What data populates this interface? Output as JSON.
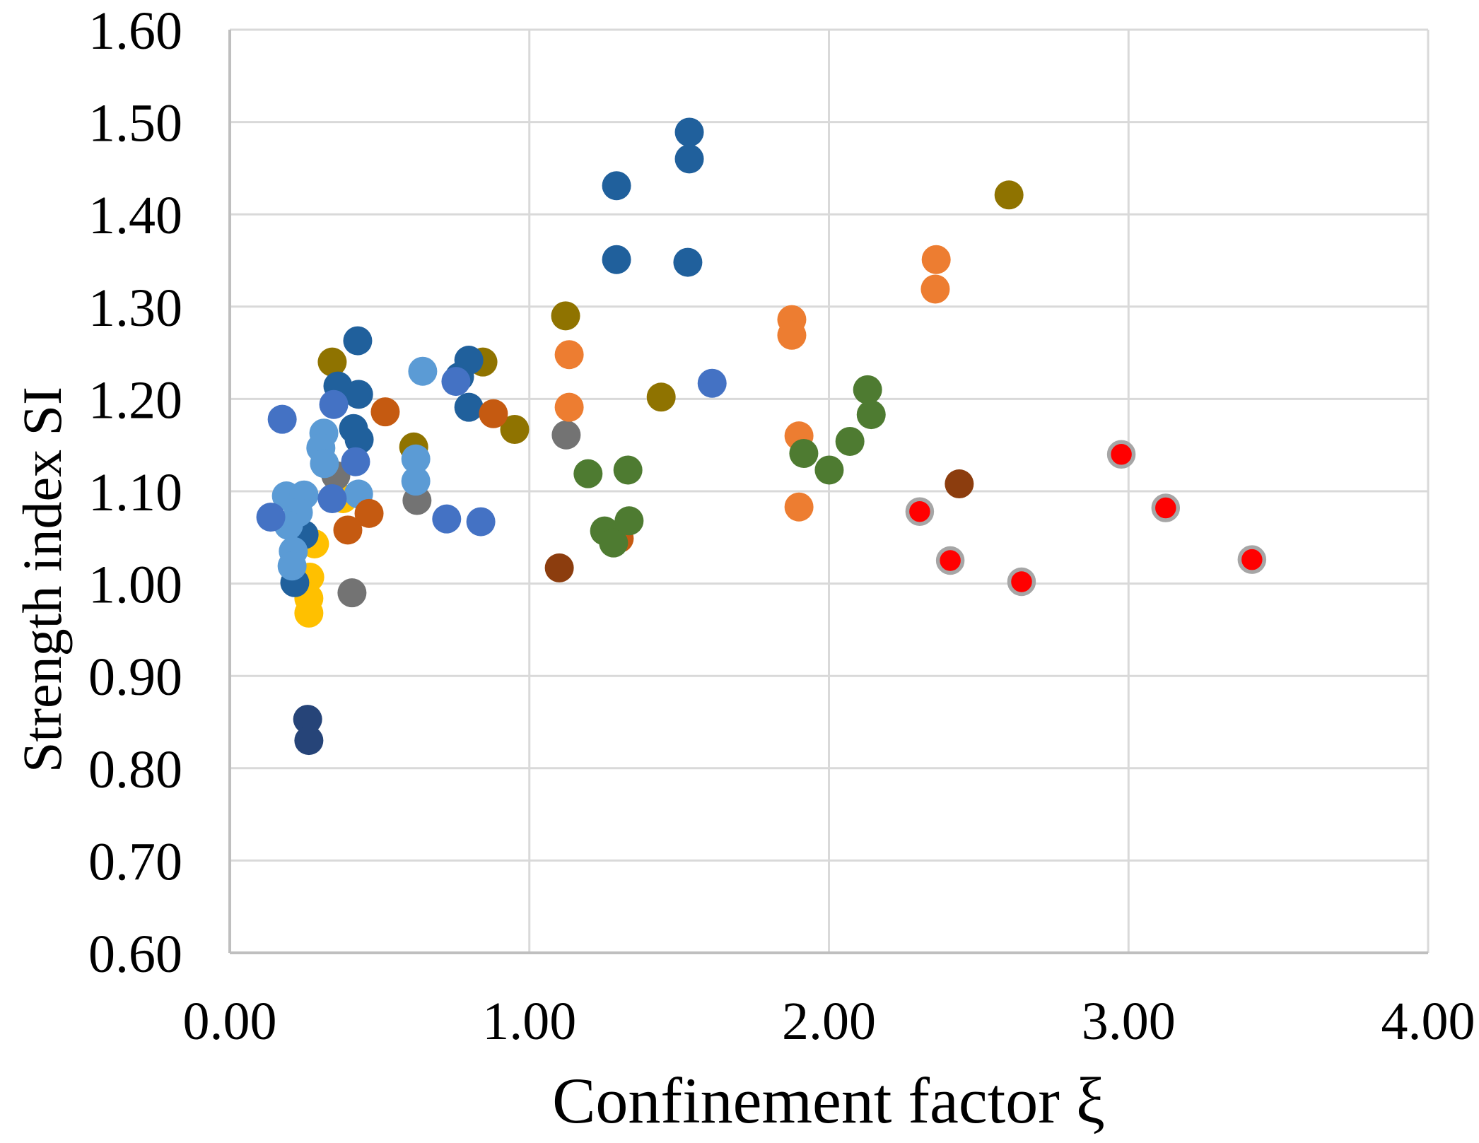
{
  "chart_data": {
    "type": "scatter",
    "title": "",
    "xlabel": "Confinement factor ξ",
    "ylabel": "Strength index SI",
    "xlim": [
      0.0,
      4.0
    ],
    "ylim": [
      0.6,
      1.6
    ],
    "grid": true,
    "legend_position": "none",
    "x_ticks": [
      {
        "value": 0.0,
        "label": "0.00"
      },
      {
        "value": 1.0,
        "label": "1.00"
      },
      {
        "value": 2.0,
        "label": "2.00"
      },
      {
        "value": 3.0,
        "label": "3.00"
      },
      {
        "value": 4.0,
        "label": "4.00"
      }
    ],
    "y_ticks": [
      {
        "value": 0.6,
        "label": "0.60"
      },
      {
        "value": 0.7,
        "label": "0.70"
      },
      {
        "value": 0.8,
        "label": "0.80"
      },
      {
        "value": 0.9,
        "label": "0.90"
      },
      {
        "value": 1.0,
        "label": "1.00"
      },
      {
        "value": 1.1,
        "label": "1.10"
      },
      {
        "value": 1.2,
        "label": "1.20"
      },
      {
        "value": 1.3,
        "label": "1.30"
      },
      {
        "value": 1.4,
        "label": "1.40"
      },
      {
        "value": 1.5,
        "label": "1.50"
      },
      {
        "value": 1.6,
        "label": "1.60"
      }
    ],
    "colors": {
      "gridline": "#D9D9D9",
      "axis_line": "#BFBFBF",
      "red_marker_outline": "#A6A6A6"
    },
    "series": [
      {
        "name": "yellow",
        "color": "#FFC000",
        "points": [
          [
            0.283,
            1.043
          ],
          [
            0.267,
            1.007
          ],
          [
            0.264,
            0.984
          ],
          [
            0.264,
            0.968
          ],
          [
            0.378,
            1.092
          ]
        ]
      },
      {
        "name": "olive",
        "color": "#8F7300",
        "points": [
          [
            0.342,
            1.24
          ],
          [
            0.845,
            1.24
          ],
          [
            0.614,
            1.148
          ],
          [
            0.951,
            1.167
          ],
          [
            1.121,
            1.29
          ],
          [
            1.44,
            1.202
          ],
          [
            2.601,
            1.421
          ]
        ]
      },
      {
        "name": "navy",
        "color": "#264478",
        "points": [
          [
            0.26,
            0.853
          ],
          [
            0.264,
            0.83
          ]
        ]
      },
      {
        "name": "gray",
        "color": "#737373",
        "points": [
          [
            0.354,
            1.117
          ],
          [
            0.625,
            1.09
          ],
          [
            1.123,
            1.161
          ],
          [
            0.408,
            0.99
          ]
        ]
      },
      {
        "name": "steel-blue",
        "color": "#20609C",
        "points": [
          [
            1.534,
            1.489
          ],
          [
            1.534,
            1.46
          ],
          [
            1.291,
            1.431
          ],
          [
            1.291,
            1.351
          ],
          [
            1.529,
            1.348
          ],
          [
            0.427,
            1.263
          ],
          [
            0.798,
            1.242
          ],
          [
            0.767,
            1.224
          ],
          [
            0.361,
            1.214
          ],
          [
            0.43,
            1.205
          ],
          [
            0.798,
            1.191
          ],
          [
            0.413,
            1.168
          ],
          [
            0.432,
            1.156
          ],
          [
            0.248,
            1.053
          ],
          [
            0.217,
            1.001
          ]
        ]
      },
      {
        "name": "light-blue",
        "color": "#5B9BD5",
        "points": [
          [
            0.644,
            1.23
          ],
          [
            0.314,
            1.163
          ],
          [
            0.304,
            1.147
          ],
          [
            0.316,
            1.13
          ],
          [
            0.621,
            1.135
          ],
          [
            0.621,
            1.111
          ],
          [
            0.43,
            1.097
          ],
          [
            0.189,
            1.095
          ],
          [
            0.248,
            1.096
          ],
          [
            0.229,
            1.077
          ],
          [
            0.196,
            1.063
          ],
          [
            0.212,
            1.035
          ],
          [
            0.208,
            1.019
          ]
        ]
      },
      {
        "name": "royal-blue",
        "color": "#4472C4",
        "points": [
          [
            0.175,
            1.178
          ],
          [
            0.347,
            1.194
          ],
          [
            0.755,
            1.219
          ],
          [
            1.61,
            1.217
          ],
          [
            0.42,
            1.132
          ],
          [
            0.342,
            1.092
          ],
          [
            0.137,
            1.072
          ],
          [
            0.724,
            1.07
          ],
          [
            0.838,
            1.067
          ]
        ]
      },
      {
        "name": "rust",
        "color": "#C55A11",
        "points": [
          [
            0.519,
            1.186
          ],
          [
            0.88,
            1.184
          ],
          [
            0.465,
            1.076
          ],
          [
            0.394,
            1.058
          ],
          [
            1.3,
            1.049
          ]
        ]
      },
      {
        "name": "brown",
        "color": "#8C3D0E",
        "points": [
          [
            1.1,
            1.017
          ],
          [
            2.435,
            1.108
          ]
        ]
      },
      {
        "name": "orange",
        "color": "#ED7D31",
        "points": [
          [
            1.133,
            1.248
          ],
          [
            1.133,
            1.191
          ],
          [
            1.876,
            1.286
          ],
          [
            1.876,
            1.269
          ],
          [
            1.9,
            1.16
          ],
          [
            1.9,
            1.083
          ],
          [
            2.358,
            1.351
          ],
          [
            2.355,
            1.319
          ]
        ]
      },
      {
        "name": "green",
        "color": "#4E7B31",
        "points": [
          [
            1.196,
            1.119
          ],
          [
            1.329,
            1.123
          ],
          [
            1.251,
            1.057
          ],
          [
            1.281,
            1.044
          ],
          [
            1.333,
            1.068
          ],
          [
            1.916,
            1.141
          ],
          [
            2.001,
            1.123
          ],
          [
            2.07,
            1.154
          ],
          [
            2.129,
            1.21
          ],
          [
            2.141,
            1.183
          ]
        ]
      },
      {
        "name": "red-outlined",
        "color": "#FF0000",
        "outline": "#A6A6A6",
        "points": [
          [
            2.303,
            1.078
          ],
          [
            2.405,
            1.025
          ],
          [
            2.643,
            1.002
          ],
          [
            2.976,
            1.14
          ],
          [
            3.124,
            1.082
          ],
          [
            3.412,
            1.026
          ]
        ]
      }
    ]
  }
}
